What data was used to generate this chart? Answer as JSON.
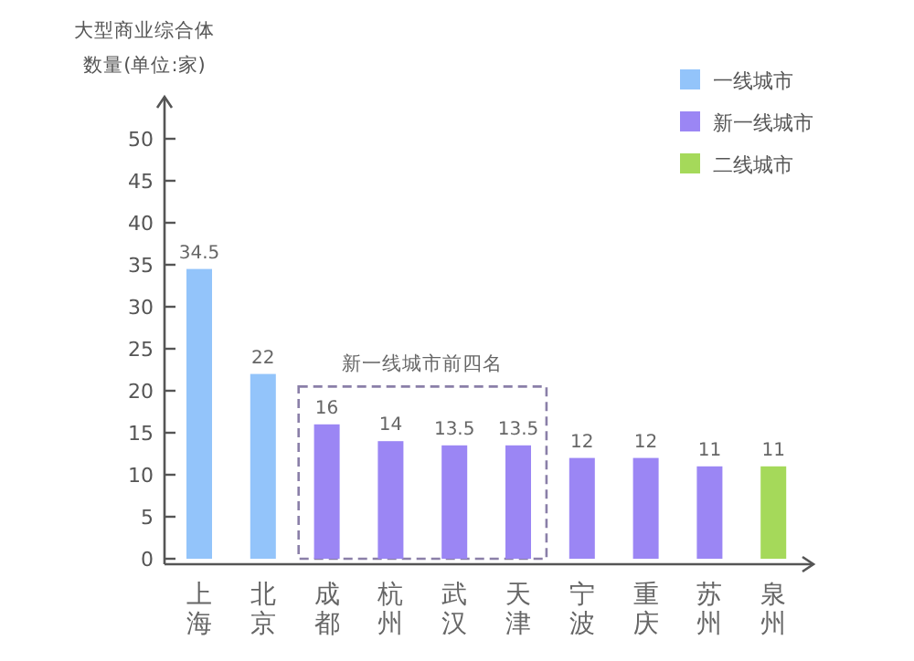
{
  "chart_data": {
    "type": "bar",
    "ylabel": "大型商业综合体数量(单位:家)",
    "categories": [
      "上海",
      "北京",
      "成都",
      "杭州",
      "武汉",
      "天津",
      "宁波",
      "重庆",
      "苏州",
      "泉州"
    ],
    "series": [
      {
        "name": "一线城市",
        "color": "#93c4fa",
        "values": [
          34.5,
          22,
          null,
          null,
          null,
          null,
          null,
          null,
          null,
          null
        ]
      },
      {
        "name": "新一线城市",
        "color": "#9b86f4",
        "values": [
          null,
          null,
          16,
          14,
          13.5,
          13.5,
          12,
          12,
          11,
          null
        ]
      },
      {
        "name": "二线城市",
        "color": "#a5d95a",
        "values": [
          null,
          null,
          null,
          null,
          null,
          null,
          null,
          null,
          null,
          11
        ]
      }
    ],
    "ylim": [
      0,
      55
    ],
    "yticks": [
      0,
      5,
      10,
      15,
      20,
      25,
      30,
      35,
      40,
      45,
      50
    ],
    "annotations": [
      "新一线城市前四名"
    ],
    "data_labels": true,
    "legend": "top right"
  }
}
